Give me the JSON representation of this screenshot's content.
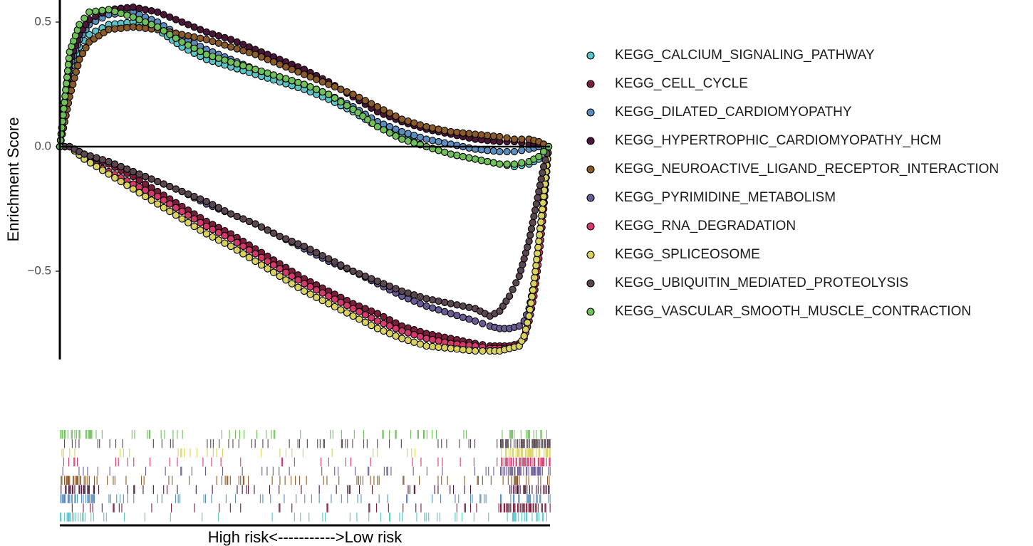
{
  "chart_data": {
    "type": "scatter",
    "title": "",
    "ylabel": "Enrichment Score",
    "xlabel": "High risk<----------->Low risk",
    "ylim": [
      -0.84,
      0.56
    ],
    "yticks": [
      0.5,
      0.0,
      -0.5
    ],
    "ytick_labels": [
      "0.5",
      "0.0",
      "−0.5"
    ],
    "zero_line": true,
    "grid": false,
    "legend_position": "right",
    "x_scale": "ranked gene list, 0 to 1",
    "series": [
      {
        "name": "KEGG_CALCIUM_SIGNALING_PATHWAY",
        "color": "#5bc4c9",
        "group": "up",
        "x": [
          0,
          0.02,
          0.04,
          0.06,
          0.1,
          0.15,
          0.2,
          0.25,
          0.3,
          0.35,
          0.4,
          0.45,
          0.5,
          0.55,
          0.6,
          0.65,
          0.7,
          0.75,
          0.8,
          0.85,
          0.9,
          0.93,
          0.96,
          0.98,
          0.99,
          1.0
        ],
        "y": [
          0,
          0.3,
          0.4,
          0.45,
          0.49,
          0.5,
          0.47,
          0.4,
          0.35,
          0.32,
          0.29,
          0.26,
          0.23,
          0.19,
          0.14,
          0.08,
          0.04,
          0.0,
          -0.03,
          -0.05,
          -0.07,
          -0.08,
          -0.07,
          -0.05,
          -0.03,
          0.0
        ]
      },
      {
        "name": "KEGG_CELL_CYCLE",
        "color": "#7b1e3c",
        "group": "down",
        "x": [
          0,
          0.02,
          0.05,
          0.1,
          0.15,
          0.2,
          0.25,
          0.3,
          0.35,
          0.4,
          0.45,
          0.5,
          0.55,
          0.6,
          0.65,
          0.7,
          0.75,
          0.8,
          0.85,
          0.88,
          0.9,
          0.92,
          0.94,
          0.95,
          0.96,
          0.97,
          0.98,
          0.99,
          1.0
        ],
        "y": [
          0,
          0.0,
          -0.03,
          -0.07,
          -0.12,
          -0.18,
          -0.24,
          -0.3,
          -0.35,
          -0.41,
          -0.47,
          -0.53,
          -0.58,
          -0.63,
          -0.67,
          -0.72,
          -0.75,
          -0.77,
          -0.79,
          -0.8,
          -0.8,
          -0.8,
          -0.79,
          -0.76,
          -0.7,
          -0.6,
          -0.45,
          -0.25,
          0.0
        ]
      },
      {
        "name": "KEGG_DILATED_CARDIOMYOPATHY",
        "color": "#5b8dbf",
        "group": "up",
        "x": [
          0,
          0.02,
          0.04,
          0.06,
          0.1,
          0.15,
          0.2,
          0.25,
          0.3,
          0.35,
          0.4,
          0.45,
          0.5,
          0.55,
          0.6,
          0.65,
          0.7,
          0.75,
          0.8,
          0.85,
          0.9,
          0.93,
          0.96,
          0.98,
          0.99,
          1.0
        ],
        "y": [
          0,
          0.32,
          0.43,
          0.49,
          0.53,
          0.54,
          0.5,
          0.44,
          0.39,
          0.35,
          0.31,
          0.28,
          0.25,
          0.21,
          0.16,
          0.1,
          0.06,
          0.03,
          0.01,
          -0.01,
          -0.02,
          -0.02,
          -0.01,
          0.0,
          0.01,
          0.0
        ]
      },
      {
        "name": "KEGG_HYPERTROPHIC_CARDIOMYOPATHY_HCM",
        "color": "#4a1537",
        "group": "up",
        "x": [
          0,
          0.02,
          0.04,
          0.06,
          0.1,
          0.15,
          0.2,
          0.25,
          0.3,
          0.35,
          0.4,
          0.45,
          0.5,
          0.55,
          0.6,
          0.65,
          0.7,
          0.75,
          0.8,
          0.85,
          0.9,
          0.93,
          0.96,
          0.98,
          0.99,
          1.0
        ],
        "y": [
          0,
          0.34,
          0.45,
          0.51,
          0.55,
          0.56,
          0.54,
          0.5,
          0.46,
          0.43,
          0.39,
          0.35,
          0.31,
          0.26,
          0.2,
          0.14,
          0.1,
          0.07,
          0.05,
          0.03,
          0.02,
          0.02,
          0.01,
          0.01,
          0.01,
          0.0
        ]
      },
      {
        "name": "KEGG_NEUROACTIVE_LIGAND_RECEPTOR_INTERACTION",
        "color": "#8b5a2b",
        "group": "up",
        "x": [
          0,
          0.02,
          0.04,
          0.06,
          0.1,
          0.15,
          0.2,
          0.25,
          0.3,
          0.35,
          0.4,
          0.45,
          0.5,
          0.55,
          0.6,
          0.65,
          0.7,
          0.75,
          0.8,
          0.85,
          0.9,
          0.93,
          0.96,
          0.98,
          0.99,
          1.0
        ],
        "y": [
          0,
          0.2,
          0.35,
          0.42,
          0.47,
          0.48,
          0.47,
          0.45,
          0.43,
          0.4,
          0.37,
          0.33,
          0.29,
          0.25,
          0.21,
          0.16,
          0.11,
          0.08,
          0.06,
          0.05,
          0.04,
          0.03,
          0.03,
          0.02,
          0.01,
          0.0
        ]
      },
      {
        "name": "KEGG_PYRIMIDINE_METABOLISM",
        "color": "#6b5b95",
        "group": "down",
        "x": [
          0,
          0.02,
          0.05,
          0.1,
          0.15,
          0.2,
          0.25,
          0.3,
          0.35,
          0.4,
          0.45,
          0.5,
          0.55,
          0.6,
          0.65,
          0.7,
          0.75,
          0.8,
          0.85,
          0.88,
          0.9,
          0.92,
          0.94,
          0.95,
          0.96,
          0.97,
          0.98,
          0.99,
          1.0
        ],
        "y": [
          0,
          0.0,
          -0.03,
          -0.06,
          -0.1,
          -0.14,
          -0.18,
          -0.23,
          -0.27,
          -0.31,
          -0.36,
          -0.41,
          -0.46,
          -0.5,
          -0.55,
          -0.6,
          -0.64,
          -0.67,
          -0.7,
          -0.72,
          -0.73,
          -0.73,
          -0.72,
          -0.7,
          -0.65,
          -0.55,
          -0.4,
          -0.22,
          0.0
        ]
      },
      {
        "name": "KEGG_RNA_DEGRADATION",
        "color": "#d63a6a",
        "group": "down",
        "x": [
          0,
          0.02,
          0.05,
          0.1,
          0.15,
          0.2,
          0.25,
          0.3,
          0.35,
          0.4,
          0.45,
          0.5,
          0.55,
          0.6,
          0.65,
          0.7,
          0.75,
          0.8,
          0.85,
          0.88,
          0.9,
          0.92,
          0.94,
          0.95,
          0.96,
          0.97,
          0.98,
          0.99,
          1.0
        ],
        "y": [
          0,
          0.0,
          -0.05,
          -0.1,
          -0.15,
          -0.2,
          -0.26,
          -0.32,
          -0.37,
          -0.43,
          -0.49,
          -0.55,
          -0.6,
          -0.65,
          -0.7,
          -0.74,
          -0.77,
          -0.79,
          -0.8,
          -0.81,
          -0.81,
          -0.81,
          -0.8,
          -0.77,
          -0.7,
          -0.6,
          -0.45,
          -0.25,
          0.0
        ]
      },
      {
        "name": "KEGG_SPLICEOSOME",
        "color": "#d9d25e",
        "group": "down",
        "x": [
          0,
          0.02,
          0.05,
          0.1,
          0.15,
          0.2,
          0.25,
          0.3,
          0.35,
          0.4,
          0.45,
          0.5,
          0.55,
          0.6,
          0.65,
          0.7,
          0.75,
          0.8,
          0.85,
          0.88,
          0.9,
          0.92,
          0.94,
          0.95,
          0.96,
          0.97,
          0.98,
          0.99,
          1.0
        ],
        "y": [
          0,
          0.0,
          -0.05,
          -0.11,
          -0.17,
          -0.23,
          -0.29,
          -0.35,
          -0.4,
          -0.46,
          -0.52,
          -0.58,
          -0.63,
          -0.68,
          -0.73,
          -0.77,
          -0.8,
          -0.81,
          -0.82,
          -0.82,
          -0.82,
          -0.81,
          -0.8,
          -0.76,
          -0.68,
          -0.55,
          -0.38,
          -0.2,
          0.0
        ]
      },
      {
        "name": "KEGG_UBIQUITIN_MEDIATED_PROTEOLYSIS",
        "color": "#5a4752",
        "group": "down",
        "x": [
          0,
          0.02,
          0.05,
          0.1,
          0.15,
          0.2,
          0.25,
          0.3,
          0.35,
          0.4,
          0.45,
          0.5,
          0.55,
          0.6,
          0.65,
          0.7,
          0.75,
          0.8,
          0.85,
          0.88,
          0.9,
          0.92,
          0.94,
          0.95,
          0.96,
          0.97,
          0.98,
          0.99,
          1.0
        ],
        "y": [
          0,
          0.0,
          -0.03,
          -0.06,
          -0.1,
          -0.14,
          -0.18,
          -0.22,
          -0.27,
          -0.31,
          -0.36,
          -0.4,
          -0.45,
          -0.5,
          -0.54,
          -0.58,
          -0.61,
          -0.63,
          -0.65,
          -0.68,
          -0.66,
          -0.6,
          -0.52,
          -0.45,
          -0.38,
          -0.28,
          -0.18,
          -0.08,
          0.0
        ]
      },
      {
        "name": "KEGG_VASCULAR_SMOOTH_MUSCLE_CONTRACTION",
        "color": "#6fbf5a",
        "group": "up",
        "x": [
          0,
          0.02,
          0.04,
          0.06,
          0.1,
          0.15,
          0.2,
          0.25,
          0.3,
          0.35,
          0.4,
          0.45,
          0.5,
          0.55,
          0.6,
          0.65,
          0.7,
          0.75,
          0.8,
          0.85,
          0.9,
          0.93,
          0.96,
          0.98,
          0.99,
          1.0
        ],
        "y": [
          0,
          0.38,
          0.49,
          0.54,
          0.55,
          0.52,
          0.48,
          0.42,
          0.37,
          0.34,
          0.31,
          0.28,
          0.25,
          0.21,
          0.15,
          0.08,
          0.03,
          0.0,
          -0.03,
          -0.05,
          -0.07,
          -0.07,
          -0.06,
          -0.04,
          -0.02,
          0.0
        ]
      }
    ]
  }
}
